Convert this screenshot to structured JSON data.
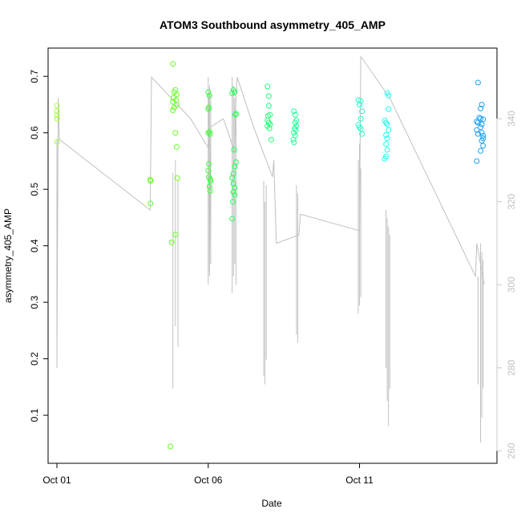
{
  "chart_data": {
    "type": "scatter",
    "title": "ATOM3 Southbound asymmetry_405_AMP",
    "xlabel": "Date",
    "ylabel": "asymmetry_405_AMP",
    "xlim": [
      "2023-09-30T17:00",
      "2023-10-15T13:00"
    ],
    "ylim": [
      0.015,
      0.75
    ],
    "y2lim": [
      257,
      357
    ],
    "x_ticks": [
      {
        "date": "2023-10-01T00:00",
        "label": "Oct 01"
      },
      {
        "date": "2023-10-06T00:00",
        "label": "Oct 06"
      },
      {
        "date": "2023-10-11T00:00",
        "label": "Oct 11"
      }
    ],
    "y_ticks": [
      0.1,
      0.2,
      0.3,
      0.4,
      0.5,
      0.6,
      0.7
    ],
    "y2_ticks": [
      260,
      280,
      300,
      320,
      340
    ],
    "grid": false,
    "marker_color_scale": [
      "#80ff00",
      "#00ff40",
      "#00ffff",
      "#0080ff"
    ],
    "series": [
      {
        "color": "#a8ff3c",
        "points": [
          [
            "2023-10-01T00:00",
            0.648
          ],
          [
            "2023-10-01T00:05",
            0.638
          ],
          [
            "2023-10-01T00:02",
            0.631
          ],
          [
            "2023-10-01T00:03",
            0.625
          ],
          [
            "2023-10-01T00:06",
            0.584
          ]
        ]
      },
      {
        "color": "#66ff22",
        "points": [
          [
            "2023-10-04T02:00",
            0.517
          ],
          [
            "2023-10-04T02:20",
            0.515
          ],
          [
            "2023-10-04T02:10",
            0.475
          ],
          [
            "2023-10-04T20:00",
            0.722
          ],
          [
            "2023-10-04T22:00",
            0.676
          ],
          [
            "2023-10-04T21:00",
            0.672
          ],
          [
            "2023-10-04T23:00",
            0.668
          ],
          [
            "2023-10-04T20:30",
            0.662
          ],
          [
            "2023-10-04T22:30",
            0.658
          ],
          [
            "2023-10-04T20:00",
            0.655
          ],
          [
            "2023-10-04T23:00",
            0.65
          ],
          [
            "2023-10-04T21:00",
            0.645
          ],
          [
            "2023-10-04T20:00",
            0.64
          ],
          [
            "2023-10-04T22:00",
            0.6
          ],
          [
            "2023-10-04T23:00",
            0.575
          ],
          [
            "2023-10-04T23:30",
            0.52
          ],
          [
            "2023-10-04T22:00",
            0.42
          ],
          [
            "2023-10-04T19:00",
            0.406
          ],
          [
            "2023-10-04T18:00",
            0.045
          ]
        ]
      },
      {
        "color": "#3cff3c",
        "points": [
          [
            "2023-10-06T00:00",
            0.672
          ],
          [
            "2023-10-06T01:00",
            0.666
          ],
          [
            "2023-10-06T00:30",
            0.645
          ],
          [
            "2023-10-06T00:00",
            0.642
          ],
          [
            "2023-10-06T01:00",
            0.602
          ],
          [
            "2023-10-06T00:00",
            0.6
          ],
          [
            "2023-10-06T01:30",
            0.598
          ],
          [
            "2023-10-06T00:30",
            0.545
          ],
          [
            "2023-10-06T00:00",
            0.533
          ],
          [
            "2023-10-06T00:30",
            0.522
          ],
          [
            "2023-10-06T01:30",
            0.518
          ],
          [
            "2023-10-06T02:00",
            0.515
          ],
          [
            "2023-10-06T01:00",
            0.505
          ],
          [
            "2023-10-06T01:30",
            0.497
          ]
        ]
      },
      {
        "color": "#22ff55",
        "points": [
          [
            "2023-10-06T20:00",
            0.676
          ],
          [
            "2023-10-06T21:00",
            0.672
          ],
          [
            "2023-10-06T19:00",
            0.67
          ],
          [
            "2023-10-06T22:00",
            0.634
          ],
          [
            "2023-10-06T21:30",
            0.632
          ],
          [
            "2023-10-06T20:30",
            0.57
          ],
          [
            "2023-10-06T22:00",
            0.548
          ],
          [
            "2023-10-06T21:00",
            0.54
          ],
          [
            "2023-10-06T20:00",
            0.528
          ],
          [
            "2023-10-06T19:00",
            0.52
          ],
          [
            "2023-10-06T20:00",
            0.51
          ],
          [
            "2023-10-06T21:00",
            0.503
          ],
          [
            "2023-10-06T20:00",
            0.495
          ],
          [
            "2023-10-06T21:00",
            0.49
          ],
          [
            "2023-10-06T19:30",
            0.478
          ],
          [
            "2023-10-06T19:00",
            0.448
          ]
        ]
      },
      {
        "color": "#22ff77",
        "points": [
          [
            "2023-10-07T23:00",
            0.682
          ],
          [
            "2023-10-08T00:00",
            0.665
          ],
          [
            "2023-10-08T00:00",
            0.648
          ],
          [
            "2023-10-08T01:00",
            0.632
          ],
          [
            "2023-10-07T23:30",
            0.63
          ],
          [
            "2023-10-07T23:00",
            0.622
          ],
          [
            "2023-10-08T00:00",
            0.618
          ],
          [
            "2023-10-08T01:00",
            0.615
          ],
          [
            "2023-10-07T23:00",
            0.612
          ],
          [
            "2023-10-08T00:30",
            0.608
          ],
          [
            "2023-10-08T02:00",
            0.588
          ]
        ]
      },
      {
        "color": "#22ff99",
        "points": [
          [
            "2023-10-08T20:00",
            0.638
          ],
          [
            "2023-10-08T21:00",
            0.632
          ],
          [
            "2023-10-08T22:00",
            0.622
          ],
          [
            "2023-10-08T21:00",
            0.618
          ],
          [
            "2023-10-08T22:00",
            0.612
          ],
          [
            "2023-10-08T20:30",
            0.608
          ],
          [
            "2023-10-08T21:30",
            0.605
          ],
          [
            "2023-10-08T20:00",
            0.6
          ],
          [
            "2023-10-08T21:00",
            0.595
          ],
          [
            "2023-10-08T19:30",
            0.588
          ],
          [
            "2023-10-08T20:00",
            0.583
          ]
        ]
      },
      {
        "color": "#22ffcc",
        "points": [
          [
            "2023-10-10T23:00",
            0.658
          ],
          [
            "2023-10-11T01:00",
            0.656
          ],
          [
            "2023-10-11T00:00",
            0.65
          ],
          [
            "2023-10-11T02:00",
            0.638
          ],
          [
            "2023-10-11T01:00",
            0.625
          ],
          [
            "2023-10-10T23:00",
            0.614
          ],
          [
            "2023-10-11T00:00",
            0.61
          ],
          [
            "2023-10-11T01:00",
            0.607
          ],
          [
            "2023-10-11T02:00",
            0.598
          ]
        ]
      },
      {
        "color": "#22ffee",
        "points": [
          [
            "2023-10-11T22:00",
            0.67
          ],
          [
            "2023-10-11T23:00",
            0.666
          ],
          [
            "2023-10-11T23:00",
            0.642
          ],
          [
            "2023-10-11T20:00",
            0.622
          ],
          [
            "2023-10-11T21:00",
            0.618
          ],
          [
            "2023-10-11T22:00",
            0.615
          ],
          [
            "2023-10-11T23:00",
            0.605
          ],
          [
            "2023-10-11T21:00",
            0.596
          ],
          [
            "2023-10-11T22:00",
            0.59
          ],
          [
            "2023-10-11T21:00",
            0.58
          ],
          [
            "2023-10-11T22:00",
            0.57
          ],
          [
            "2023-10-11T21:00",
            0.558
          ],
          [
            "2023-10-11T20:00",
            0.554
          ]
        ]
      },
      {
        "color": "#1aa0f0",
        "points": [
          [
            "2023-10-14T22:00",
            0.689
          ],
          [
            "2023-10-15T01:00",
            0.65
          ],
          [
            "2023-10-15T00:00",
            0.643
          ],
          [
            "2023-10-14T23:00",
            0.627
          ],
          [
            "2023-10-15T00:00",
            0.625
          ],
          [
            "2023-10-15T02:00",
            0.624
          ],
          [
            "2023-10-14T21:00",
            0.62
          ],
          [
            "2023-10-14T22:00",
            0.618
          ],
          [
            "2023-10-15T01:00",
            0.615
          ],
          [
            "2023-10-15T00:00",
            0.61
          ],
          [
            "2023-10-14T21:00",
            0.605
          ],
          [
            "2023-10-15T01:00",
            0.6
          ],
          [
            "2023-10-14T22:00",
            0.598
          ],
          [
            "2023-10-15T02:00",
            0.595
          ],
          [
            "2023-10-15T02:00",
            0.59
          ],
          [
            "2023-10-15T01:00",
            0.586
          ],
          [
            "2023-10-15T02:00",
            0.577
          ],
          [
            "2023-10-15T00:00",
            0.568
          ],
          [
            "2023-10-14T21:00",
            0.55
          ]
        ]
      }
    ],
    "secondary_line": {
      "color": "#c0c0c0",
      "points": [
        [
          "2023-10-01T00:00",
          280
        ],
        [
          "2023-10-01T01:00",
          345
        ],
        [
          "2023-10-01T02:00",
          335
        ],
        [
          "2023-10-04T02:00",
          318
        ],
        [
          "2023-10-04T03:00",
          350
        ],
        [
          "2023-10-05T10:00",
          340
        ],
        [
          "2023-10-06T00:00",
          333
        ],
        [
          "2023-10-06T00:30",
          346
        ],
        [
          "2023-10-06T01:00",
          303
        ],
        [
          "2023-10-06T02:00",
          338
        ],
        [
          "2023-10-06T12:00",
          340
        ],
        [
          "2023-10-06T21:00",
          332
        ],
        [
          "2023-10-06T22:00",
          345
        ],
        [
          "2023-10-06T23:00",
          350
        ],
        [
          "2023-10-07T12:00",
          338
        ],
        [
          "2023-10-08T03:00",
          326
        ],
        [
          "2023-10-08T04:00",
          330
        ],
        [
          "2023-10-08T06:00",
          310
        ],
        [
          "2023-10-09T00:00",
          312
        ],
        [
          "2023-10-09T01:00",
          317
        ],
        [
          "2023-10-11T00:00",
          313
        ],
        [
          "2023-10-11T01:00",
          355
        ],
        [
          "2023-10-12T00:00",
          345
        ],
        [
          "2023-10-14T20:00",
          302
        ],
        [
          "2023-10-14T21:00",
          310
        ],
        [
          "2023-10-15T03:00",
          300
        ]
      ],
      "spikes": [
        [
          "2023-10-01T00:00",
          280,
          335
        ],
        [
          "2023-10-04T20:00",
          275,
          327
        ],
        [
          "2023-10-04T22:00",
          290,
          330
        ],
        [
          "2023-10-05T00:00",
          285,
          325
        ],
        [
          "2023-10-06T00:00",
          300,
          350
        ],
        [
          "2023-10-06T01:00",
          302,
          348
        ],
        [
          "2023-10-06T02:00",
          305,
          346
        ],
        [
          "2023-10-06T19:00",
          298,
          350
        ],
        [
          "2023-10-06T20:00",
          302,
          348
        ],
        [
          "2023-10-06T21:00",
          305,
          345
        ],
        [
          "2023-10-06T22:00",
          300,
          342
        ],
        [
          "2023-10-07T20:00",
          278,
          325
        ],
        [
          "2023-10-07T21:00",
          276,
          320
        ],
        [
          "2023-10-07T22:00",
          282,
          324
        ],
        [
          "2023-10-08T22:00",
          288,
          324
        ],
        [
          "2023-10-08T23:00",
          286,
          322
        ],
        [
          "2023-10-10T23:00",
          293,
          330
        ],
        [
          "2023-10-11T00:00",
          295,
          334
        ],
        [
          "2023-10-11T01:00",
          297,
          328
        ],
        [
          "2023-10-11T21:00",
          280,
          318
        ],
        [
          "2023-10-11T22:00",
          272,
          316
        ],
        [
          "2023-10-11T23:00",
          266,
          314
        ],
        [
          "2023-10-12T00:00",
          275,
          312
        ],
        [
          "2023-10-14T22:00",
          276,
          302
        ],
        [
          "2023-10-15T00:00",
          262,
          310
        ],
        [
          "2023-10-15T01:00",
          268,
          308
        ],
        [
          "2023-10-15T02:00",
          275,
          306
        ]
      ]
    }
  }
}
